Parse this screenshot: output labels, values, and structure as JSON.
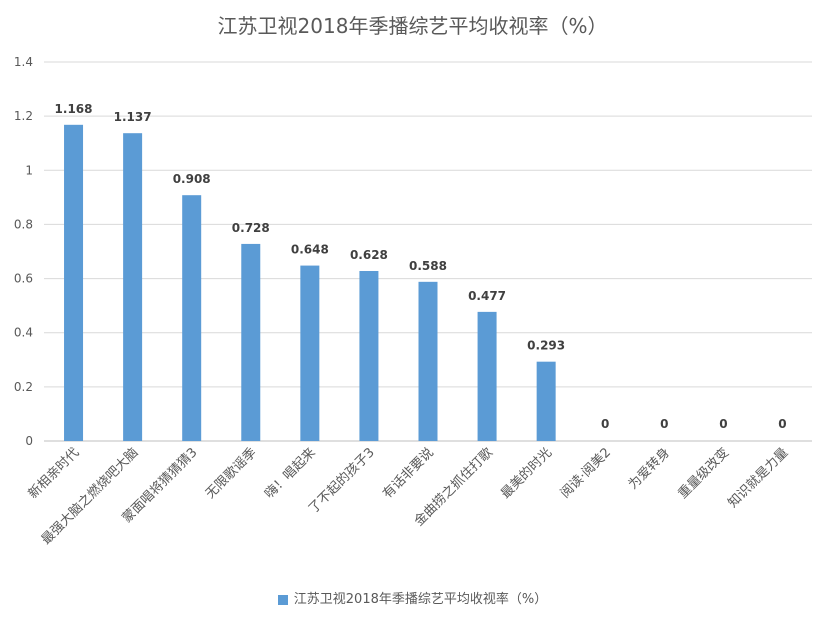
{
  "chart_data": {
    "type": "bar",
    "title": "江苏卫视2018年季播综艺平均收视率（%）",
    "categories": [
      "新相亲时代",
      "最强大脑之燃烧吧大脑",
      "蒙面唱将猜猜猜3",
      "无限歌谣季",
      "嗨！唱起来",
      "了不起的孩子3",
      "有话非要说",
      "金曲捞之抓住打歌",
      "最美的时光",
      "阅读·阅美2",
      "为爱转身",
      "重量级改变",
      "知识就是力量"
    ],
    "values": [
      1.168,
      1.137,
      0.908,
      0.728,
      0.648,
      0.628,
      0.588,
      0.477,
      0.293,
      0,
      0,
      0,
      0
    ],
    "data_labels": [
      "1.168",
      "1.137",
      "0.908",
      "0.728",
      "0.648",
      "0.628",
      "0.588",
      "0.477",
      "0.293",
      "0",
      "0",
      "0",
      "0"
    ],
    "ylim": [
      0,
      1.4
    ],
    "yticks": [
      "0",
      "0.2",
      "0.4",
      "0.6",
      "0.8",
      "1",
      "1.2",
      "1.4"
    ],
    "legend": "江苏卫视2018年季播综艺平均收视率（%）",
    "legend_position": "bottom",
    "grid": true,
    "bar_color": "#5B9BD5",
    "grid_color": "#D9D9D9"
  }
}
